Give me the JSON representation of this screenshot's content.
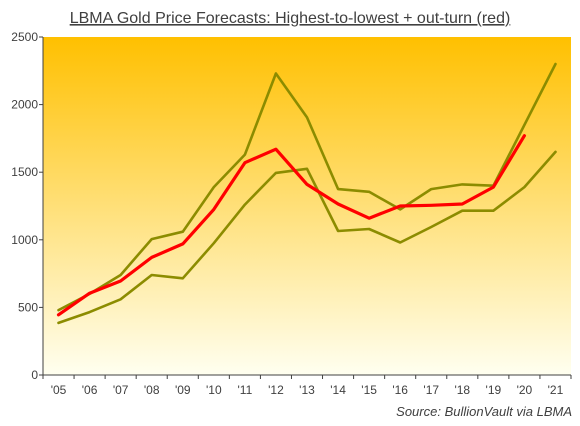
{
  "chart_data": {
    "type": "line",
    "title": "LBMA Gold Price Forecasts: Highest-to-lowest  + out-turn  (red)",
    "source": "Source:  BullionVault via LBMA",
    "xlabel": "",
    "ylabel": "",
    "categories": [
      "'05",
      "'06",
      "'07",
      "'08",
      "'09",
      "'10",
      "'11",
      "'12",
      "'13",
      "'14",
      "'15",
      "'16",
      "'17",
      "'18",
      "'19",
      "'20",
      "'21"
    ],
    "ylim": [
      0,
      2500
    ],
    "yticks": [
      0,
      500,
      1000,
      1500,
      2000,
      2500
    ],
    "grid": false,
    "background": "yellow-gradient",
    "colors": {
      "bg_top": "#ffc000",
      "bg_bottom": "#fffff0",
      "range_lines": "#8c8c00",
      "outturn_line": "#ff0000",
      "axis": "#404040"
    },
    "series": [
      {
        "key": "high",
        "color": "#8c8c00",
        "values": [
          480,
          600,
          740,
          1005,
          1060,
          1390,
          1630,
          2230,
          1905,
          1375,
          1355,
          1225,
          1375,
          1410,
          1400,
          null,
          2300
        ]
      },
      {
        "key": "low",
        "color": "#8c8c00",
        "values": [
          385,
          465,
          560,
          740,
          715,
          975,
          1260,
          1495,
          1525,
          1065,
          1080,
          980,
          1095,
          1215,
          1215,
          1390,
          1650
        ]
      },
      {
        "key": "outturn",
        "color": "#ff0000",
        "values": [
          445,
          605,
          695,
          870,
          970,
          1225,
          1570,
          1670,
          1410,
          1265,
          1160,
          1250,
          1255,
          1265,
          1390,
          1770,
          null
        ]
      }
    ]
  }
}
